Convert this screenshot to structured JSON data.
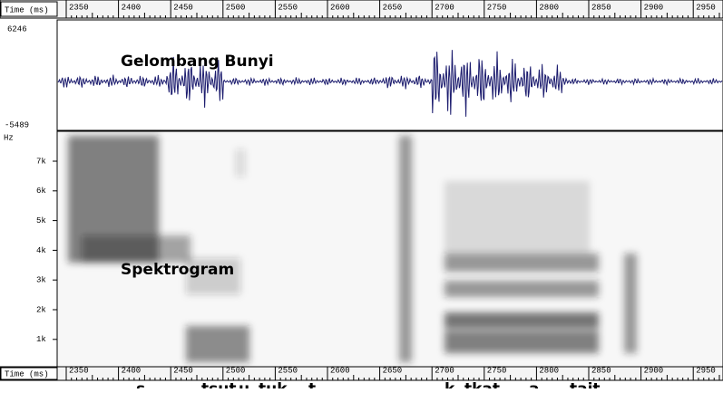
{
  "top_ruler": {
    "label": "Time (ms)",
    "ticks": [
      2350,
      2400,
      2450,
      2500,
      2550,
      2600,
      2650,
      2700,
      2750,
      2800,
      2850,
      2900,
      2950
    ]
  },
  "waveform": {
    "max_label": "6246",
    "min_label": "-5489",
    "caption": "Gelombang Bunyi"
  },
  "spectrogram": {
    "unit_label": "Hz",
    "ticks": [
      "7k",
      "6k",
      "5k",
      "4k",
      "3k",
      "2k",
      "1k"
    ],
    "caption": "Spektrogram"
  },
  "bottom_ruler": {
    "label": "Time (ms)",
    "ticks": [
      2350,
      2400,
      2450,
      2500,
      2550,
      2600,
      2650,
      2700,
      2750,
      2800,
      2850,
      2900,
      2950
    ]
  },
  "transcription": [
    "s",
    "tsut",
    "u",
    "tuk",
    "t",
    "k",
    "tkat",
    "a",
    "tait"
  ]
}
